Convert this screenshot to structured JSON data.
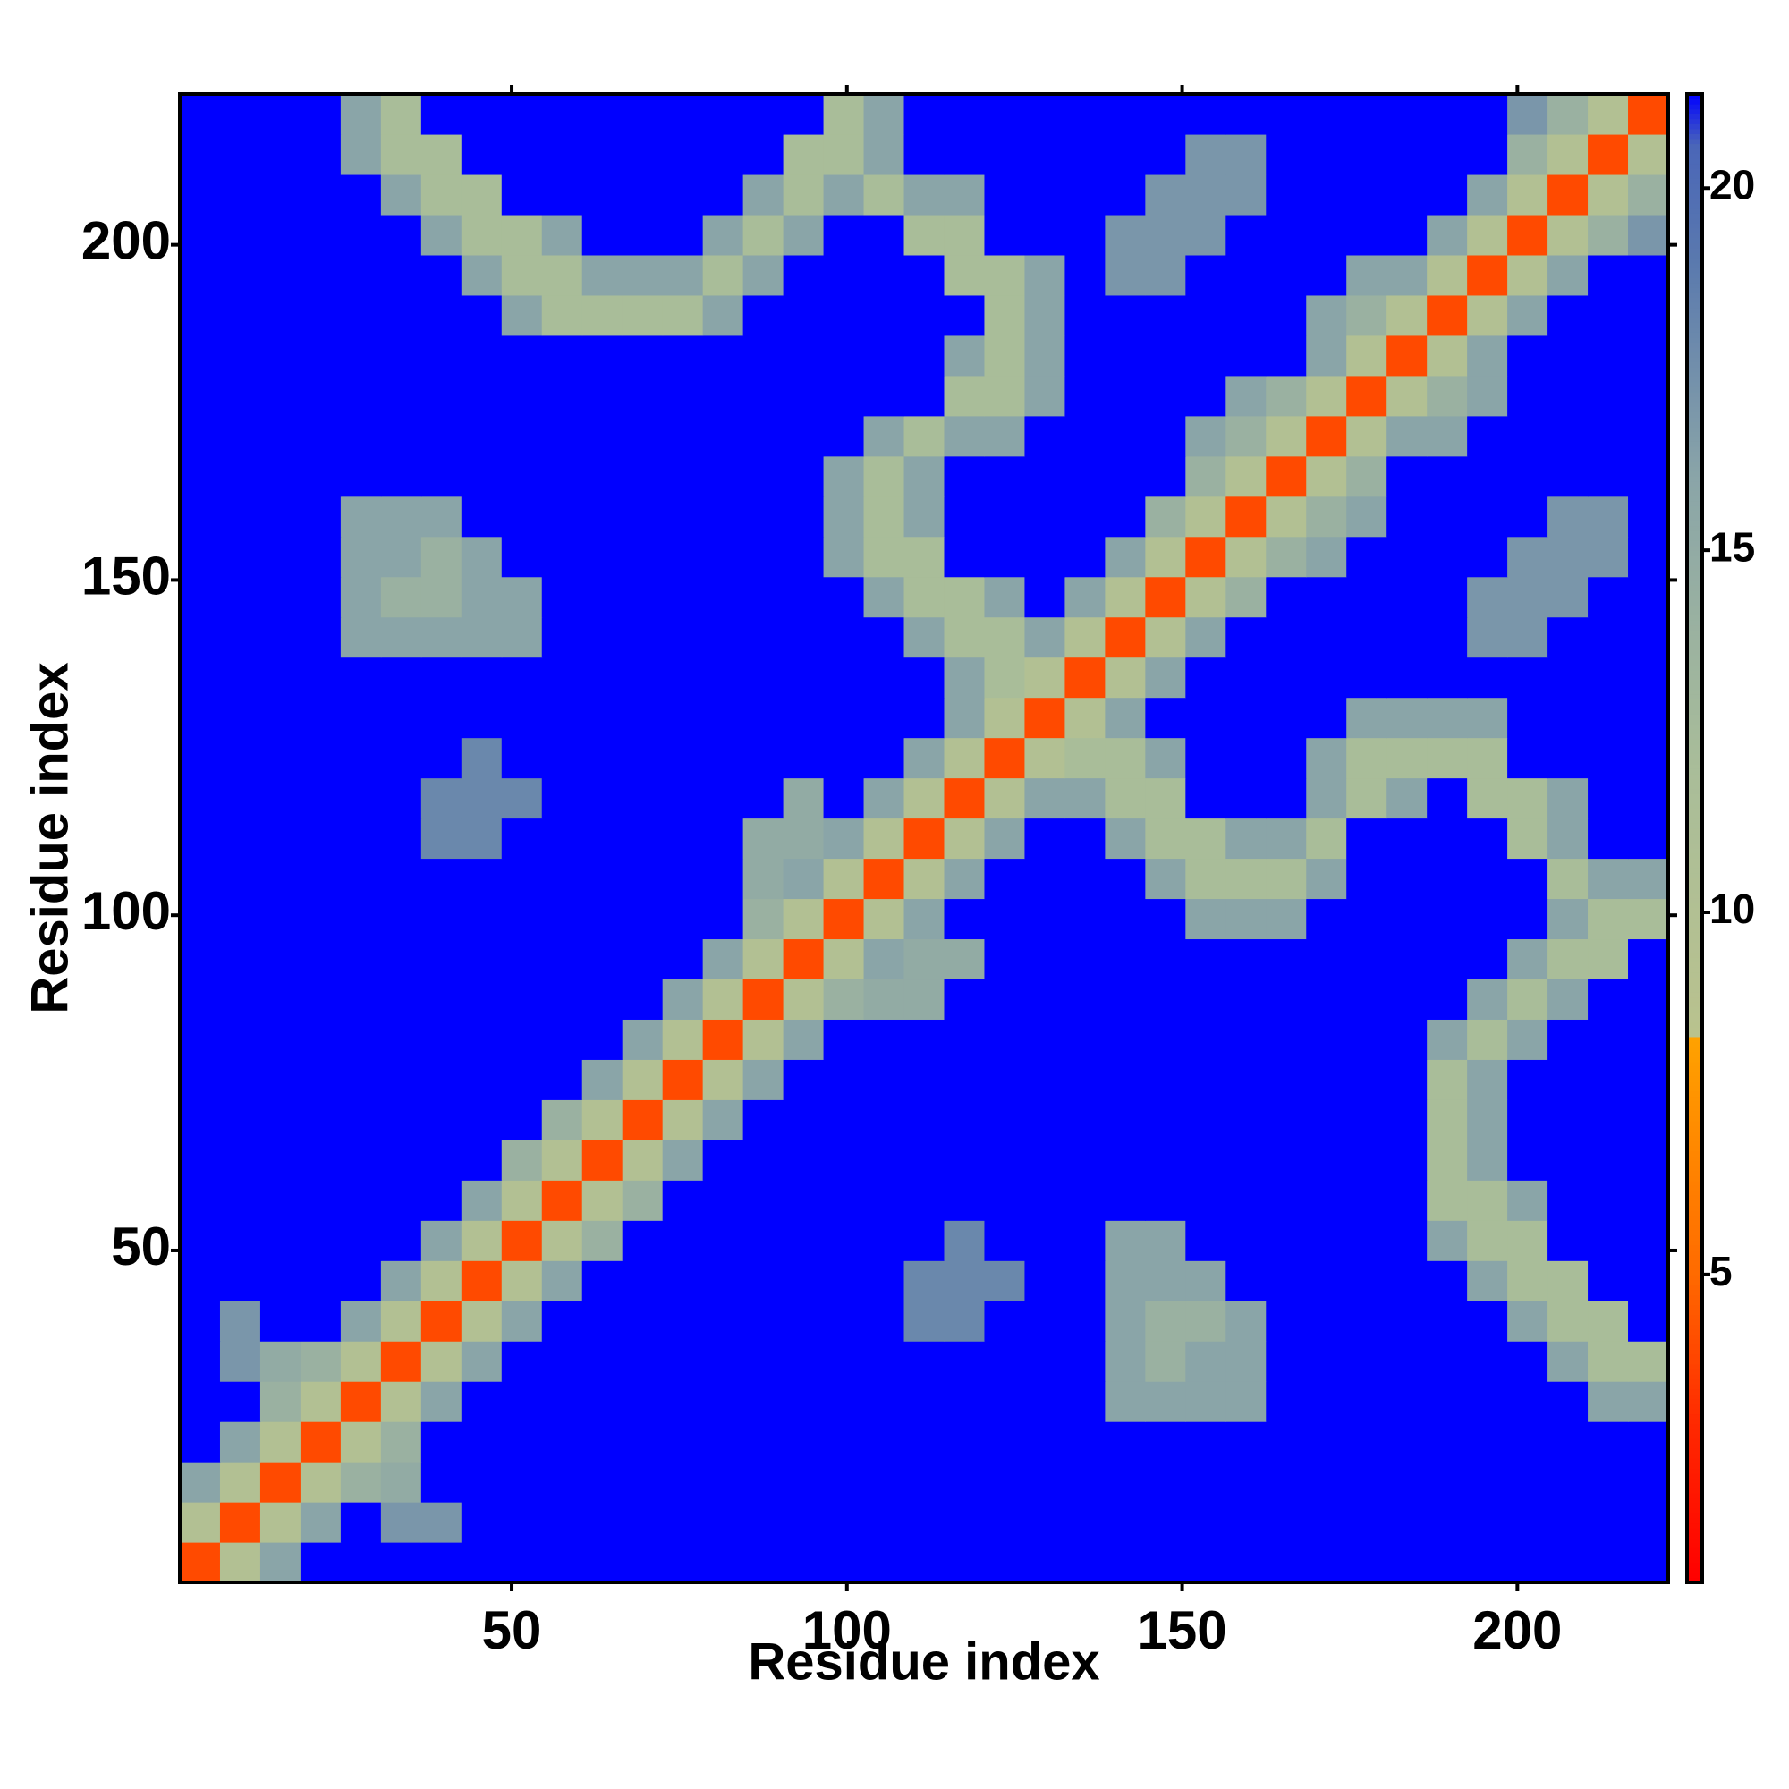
{
  "chart_data": {
    "type": "heatmap",
    "x_label": "Residue index",
    "y_label": "Residue index",
    "bins": [
      0.5,
      6.5,
      12.5,
      18.5,
      24.5,
      30.5,
      36.5,
      42.5,
      48.5,
      54.5,
      60.5,
      66.5,
      72.5,
      78.5,
      84.5,
      90.5,
      96.5,
      102.5,
      108.5,
      114.5,
      120.5,
      126.5,
      132.5,
      138.5,
      144.5,
      150.5,
      156.5,
      162.5,
      168.5,
      174.5,
      180.5,
      186.5,
      192.5,
      198.5,
      204.5,
      210.5,
      216.5,
      222.5
    ],
    "values": [
      [
        4,
        10,
        16,
        22,
        22,
        22,
        22,
        22,
        22,
        22,
        22,
        22,
        22,
        22,
        22,
        22,
        22,
        22,
        22,
        22,
        22,
        22,
        22,
        22,
        22,
        22,
        22,
        22,
        22,
        22,
        22,
        22,
        22,
        22,
        22,
        22,
        22
      ],
      [
        10,
        4,
        10,
        16,
        22,
        17,
        17,
        22,
        22,
        22,
        22,
        22,
        22,
        22,
        22,
        22,
        22,
        22,
        22,
        22,
        22,
        22,
        22,
        22,
        22,
        22,
        22,
        22,
        22,
        22,
        22,
        22,
        22,
        22,
        22,
        22,
        22
      ],
      [
        16,
        10,
        4,
        10,
        14,
        15,
        22,
        22,
        22,
        22,
        22,
        22,
        22,
        22,
        22,
        22,
        22,
        22,
        22,
        22,
        22,
        22,
        22,
        22,
        22,
        22,
        22,
        22,
        22,
        22,
        22,
        22,
        22,
        22,
        22,
        22,
        22
      ],
      [
        22,
        16,
        10,
        4,
        10,
        14,
        22,
        22,
        22,
        22,
        22,
        22,
        22,
        22,
        22,
        22,
        22,
        22,
        22,
        22,
        22,
        22,
        22,
        22,
        22,
        22,
        22,
        22,
        22,
        22,
        22,
        22,
        22,
        22,
        22,
        22,
        22
      ],
      [
        22,
        22,
        14,
        10,
        4,
        10,
        16,
        22,
        22,
        22,
        22,
        22,
        22,
        22,
        22,
        22,
        22,
        22,
        22,
        22,
        22,
        22,
        22,
        16,
        16,
        16,
        16,
        22,
        22,
        22,
        22,
        22,
        22,
        22,
        22,
        16,
        16
      ],
      [
        22,
        17,
        15,
        14,
        10,
        4,
        10,
        16,
        22,
        22,
        22,
        22,
        22,
        22,
        22,
        22,
        22,
        22,
        22,
        22,
        22,
        22,
        22,
        16,
        14,
        16,
        16,
        22,
        22,
        22,
        22,
        22,
        22,
        22,
        16,
        12,
        12
      ],
      [
        22,
        17,
        22,
        22,
        16,
        10,
        4,
        10,
        16,
        22,
        22,
        22,
        22,
        22,
        22,
        22,
        22,
        22,
        18,
        18,
        22,
        22,
        22,
        16,
        14,
        14,
        16,
        22,
        22,
        22,
        22,
        22,
        22,
        16,
        12,
        12,
        22
      ],
      [
        22,
        22,
        22,
        22,
        22,
        16,
        10,
        4,
        10,
        16,
        22,
        22,
        22,
        22,
        22,
        22,
        22,
        22,
        18,
        18,
        18,
        22,
        22,
        16,
        16,
        16,
        22,
        22,
        22,
        22,
        22,
        22,
        16,
        12,
        12,
        22,
        22
      ],
      [
        22,
        22,
        22,
        22,
        22,
        22,
        16,
        10,
        4,
        10,
        14,
        22,
        22,
        22,
        22,
        22,
        22,
        22,
        22,
        18,
        22,
        22,
        22,
        16,
        16,
        22,
        22,
        22,
        22,
        22,
        22,
        16,
        12,
        12,
        22,
        22,
        22
      ],
      [
        22,
        22,
        22,
        22,
        22,
        22,
        22,
        16,
        10,
        4,
        10,
        14,
        22,
        22,
        22,
        22,
        22,
        22,
        22,
        22,
        22,
        22,
        22,
        22,
        22,
        22,
        22,
        22,
        22,
        22,
        22,
        12,
        12,
        16,
        22,
        22,
        22
      ],
      [
        22,
        22,
        22,
        22,
        22,
        22,
        22,
        22,
        14,
        10,
        4,
        10,
        16,
        22,
        22,
        22,
        22,
        22,
        22,
        22,
        22,
        22,
        22,
        22,
        22,
        22,
        22,
        22,
        22,
        22,
        22,
        12,
        16,
        22,
        22,
        22,
        22
      ],
      [
        22,
        22,
        22,
        22,
        22,
        22,
        22,
        22,
        22,
        14,
        10,
        4,
        10,
        16,
        22,
        22,
        22,
        22,
        22,
        22,
        22,
        22,
        22,
        22,
        22,
        22,
        22,
        22,
        22,
        22,
        22,
        12,
        16,
        22,
        22,
        22,
        22
      ],
      [
        22,
        22,
        22,
        22,
        22,
        22,
        22,
        22,
        22,
        22,
        16,
        10,
        4,
        10,
        16,
        22,
        22,
        22,
        22,
        22,
        22,
        22,
        22,
        22,
        22,
        22,
        22,
        22,
        22,
        22,
        22,
        12,
        16,
        22,
        22,
        22,
        22
      ],
      [
        22,
        22,
        22,
        22,
        22,
        22,
        22,
        22,
        22,
        22,
        22,
        16,
        10,
        4,
        10,
        16,
        22,
        22,
        22,
        22,
        22,
        22,
        22,
        22,
        22,
        22,
        22,
        22,
        22,
        22,
        22,
        16,
        12,
        16,
        22,
        22,
        22
      ],
      [
        22,
        22,
        22,
        22,
        22,
        22,
        22,
        22,
        22,
        22,
        22,
        22,
        16,
        10,
        4,
        10,
        14,
        15,
        15,
        22,
        22,
        22,
        22,
        22,
        22,
        22,
        22,
        22,
        22,
        22,
        22,
        22,
        16,
        12,
        16,
        22,
        22
      ],
      [
        22,
        22,
        22,
        22,
        22,
        22,
        22,
        22,
        22,
        22,
        22,
        22,
        22,
        16,
        10,
        4,
        10,
        16,
        15,
        15,
        22,
        22,
        22,
        22,
        22,
        22,
        22,
        22,
        22,
        22,
        22,
        22,
        22,
        16,
        12,
        12,
        22
      ],
      [
        22,
        22,
        22,
        22,
        22,
        22,
        22,
        22,
        22,
        22,
        22,
        22,
        22,
        22,
        14,
        10,
        4,
        10,
        16,
        22,
        22,
        22,
        22,
        22,
        22,
        16,
        16,
        16,
        22,
        22,
        22,
        22,
        22,
        22,
        16,
        12,
        12
      ],
      [
        22,
        22,
        22,
        22,
        22,
        22,
        22,
        22,
        22,
        22,
        22,
        22,
        22,
        22,
        15,
        16,
        10,
        4,
        10,
        16,
        22,
        22,
        22,
        22,
        16,
        12,
        12,
        12,
        16,
        22,
        22,
        22,
        22,
        22,
        12,
        16,
        16
      ],
      [
        22,
        22,
        22,
        22,
        22,
        22,
        18,
        18,
        22,
        22,
        22,
        22,
        22,
        22,
        15,
        15,
        16,
        10,
        4,
        10,
        16,
        22,
        22,
        16,
        12,
        12,
        16,
        16,
        12,
        22,
        22,
        22,
        22,
        12,
        16,
        22,
        22
      ],
      [
        22,
        22,
        22,
        22,
        22,
        22,
        18,
        18,
        18,
        22,
        22,
        22,
        22,
        22,
        22,
        15,
        22,
        16,
        10,
        4,
        10,
        16,
        16,
        12,
        12,
        22,
        22,
        22,
        16,
        12,
        16,
        22,
        12,
        12,
        16,
        22,
        22
      ],
      [
        22,
        22,
        22,
        22,
        22,
        22,
        22,
        18,
        22,
        22,
        22,
        22,
        22,
        22,
        22,
        22,
        22,
        22,
        16,
        10,
        4,
        10,
        12,
        12,
        16,
        22,
        22,
        22,
        16,
        12,
        12,
        12,
        12,
        22,
        22,
        22,
        22
      ],
      [
        22,
        22,
        22,
        22,
        22,
        22,
        22,
        22,
        22,
        22,
        22,
        22,
        22,
        22,
        22,
        22,
        22,
        22,
        22,
        16,
        10,
        4,
        10,
        16,
        22,
        22,
        22,
        22,
        22,
        16,
        16,
        16,
        16,
        22,
        22,
        22,
        22
      ],
      [
        22,
        22,
        22,
        22,
        22,
        22,
        22,
        22,
        22,
        22,
        22,
        22,
        22,
        22,
        22,
        22,
        22,
        22,
        22,
        16,
        12,
        10,
        4,
        10,
        16,
        22,
        22,
        22,
        22,
        22,
        22,
        22,
        22,
        22,
        22,
        22,
        22
      ],
      [
        22,
        22,
        22,
        22,
        16,
        16,
        16,
        16,
        16,
        22,
        22,
        22,
        22,
        22,
        22,
        22,
        22,
        22,
        16,
        12,
        12,
        16,
        10,
        4,
        10,
        16,
        22,
        22,
        22,
        22,
        22,
        22,
        17,
        17,
        22,
        22,
        22
      ],
      [
        22,
        22,
        22,
        22,
        16,
        14,
        14,
        16,
        16,
        22,
        22,
        22,
        22,
        22,
        22,
        22,
        22,
        16,
        12,
        12,
        16,
        22,
        16,
        10,
        4,
        10,
        14,
        22,
        22,
        22,
        22,
        22,
        17,
        17,
        17,
        22,
        22
      ],
      [
        22,
        22,
        22,
        22,
        16,
        16,
        14,
        16,
        22,
        22,
        22,
        22,
        22,
        22,
        22,
        22,
        16,
        12,
        12,
        22,
        22,
        22,
        22,
        16,
        10,
        4,
        10,
        14,
        16,
        22,
        22,
        22,
        22,
        17,
        17,
        17,
        22
      ],
      [
        22,
        22,
        22,
        22,
        16,
        16,
        16,
        22,
        22,
        22,
        22,
        22,
        22,
        22,
        22,
        22,
        16,
        12,
        16,
        22,
        22,
        22,
        22,
        22,
        14,
        10,
        4,
        10,
        14,
        16,
        22,
        22,
        22,
        22,
        17,
        17,
        22
      ],
      [
        22,
        22,
        22,
        22,
        22,
        22,
        22,
        22,
        22,
        22,
        22,
        22,
        22,
        22,
        22,
        22,
        16,
        12,
        16,
        22,
        22,
        22,
        22,
        22,
        22,
        14,
        10,
        4,
        10,
        14,
        22,
        22,
        22,
        22,
        22,
        22,
        22
      ],
      [
        22,
        22,
        22,
        22,
        22,
        22,
        22,
        22,
        22,
        22,
        22,
        22,
        22,
        22,
        22,
        22,
        22,
        16,
        12,
        16,
        16,
        22,
        22,
        22,
        22,
        16,
        14,
        10,
        4,
        10,
        16,
        16,
        22,
        22,
        22,
        22,
        22
      ],
      [
        22,
        22,
        22,
        22,
        22,
        22,
        22,
        22,
        22,
        22,
        22,
        22,
        22,
        22,
        22,
        22,
        22,
        22,
        22,
        12,
        12,
        16,
        22,
        22,
        22,
        22,
        16,
        14,
        10,
        4,
        10,
        14,
        16,
        22,
        22,
        22,
        22
      ],
      [
        22,
        22,
        22,
        22,
        22,
        22,
        22,
        22,
        22,
        22,
        22,
        22,
        22,
        22,
        22,
        22,
        22,
        22,
        22,
        16,
        12,
        16,
        22,
        22,
        22,
        22,
        22,
        22,
        16,
        10,
        4,
        10,
        16,
        22,
        22,
        22,
        22
      ],
      [
        22,
        22,
        22,
        22,
        22,
        22,
        22,
        22,
        16,
        12,
        12,
        12,
        12,
        16,
        22,
        22,
        22,
        22,
        22,
        22,
        12,
        16,
        22,
        22,
        22,
        22,
        22,
        22,
        16,
        14,
        10,
        4,
        10,
        16,
        22,
        22,
        22
      ],
      [
        22,
        22,
        22,
        22,
        22,
        22,
        22,
        16,
        12,
        12,
        16,
        16,
        16,
        12,
        16,
        22,
        22,
        22,
        22,
        12,
        12,
        16,
        22,
        17,
        17,
        22,
        22,
        22,
        22,
        16,
        16,
        10,
        4,
        10,
        16,
        22,
        22
      ],
      [
        22,
        22,
        22,
        22,
        22,
        22,
        16,
        12,
        12,
        16,
        22,
        22,
        22,
        16,
        12,
        16,
        22,
        22,
        12,
        12,
        22,
        22,
        22,
        17,
        17,
        17,
        22,
        22,
        22,
        22,
        22,
        16,
        10,
        4,
        10,
        14,
        17
      ],
      [
        22,
        22,
        22,
        22,
        22,
        16,
        12,
        12,
        22,
        22,
        22,
        22,
        22,
        22,
        16,
        12,
        16,
        12,
        16,
        16,
        22,
        22,
        22,
        22,
        17,
        17,
        17,
        22,
        22,
        22,
        22,
        22,
        16,
        10,
        4,
        10,
        14
      ],
      [
        22,
        22,
        22,
        22,
        16,
        12,
        12,
        22,
        22,
        22,
        22,
        22,
        22,
        22,
        22,
        12,
        12,
        16,
        22,
        22,
        22,
        22,
        22,
        22,
        22,
        17,
        17,
        22,
        22,
        22,
        22,
        22,
        22,
        14,
        10,
        4,
        10
      ],
      [
        22,
        22,
        22,
        22,
        16,
        12,
        22,
        22,
        22,
        22,
        22,
        22,
        22,
        22,
        22,
        22,
        12,
        16,
        22,
        22,
        22,
        22,
        22,
        22,
        22,
        22,
        22,
        22,
        22,
        22,
        22,
        22,
        22,
        17,
        14,
        10,
        4
      ]
    ],
    "xlim": [
      0.5,
      222.5
    ],
    "ylim": [
      0.5,
      222.5
    ],
    "xticks": [
      50,
      100,
      150,
      200
    ],
    "yticks": [
      50,
      100,
      150,
      200
    ],
    "colorscale": [
      [
        0.75,
        "#ff0000"
      ],
      [
        3,
        "#ff2a00"
      ],
      [
        5,
        "#ff6a00"
      ],
      [
        8.3,
        "#ffa200"
      ],
      [
        8.3,
        "#b9c28e"
      ],
      [
        12,
        "#a9bd99"
      ],
      [
        16,
        "#8aa5a8"
      ],
      [
        19,
        "#5a79ae"
      ],
      [
        20.6,
        "#4a66b8"
      ],
      [
        21.3,
        "#0000ff"
      ]
    ],
    "colorbar": {
      "lim": [
        0.75,
        21.3
      ],
      "ticks": [
        5,
        10,
        15,
        20
      ]
    }
  }
}
